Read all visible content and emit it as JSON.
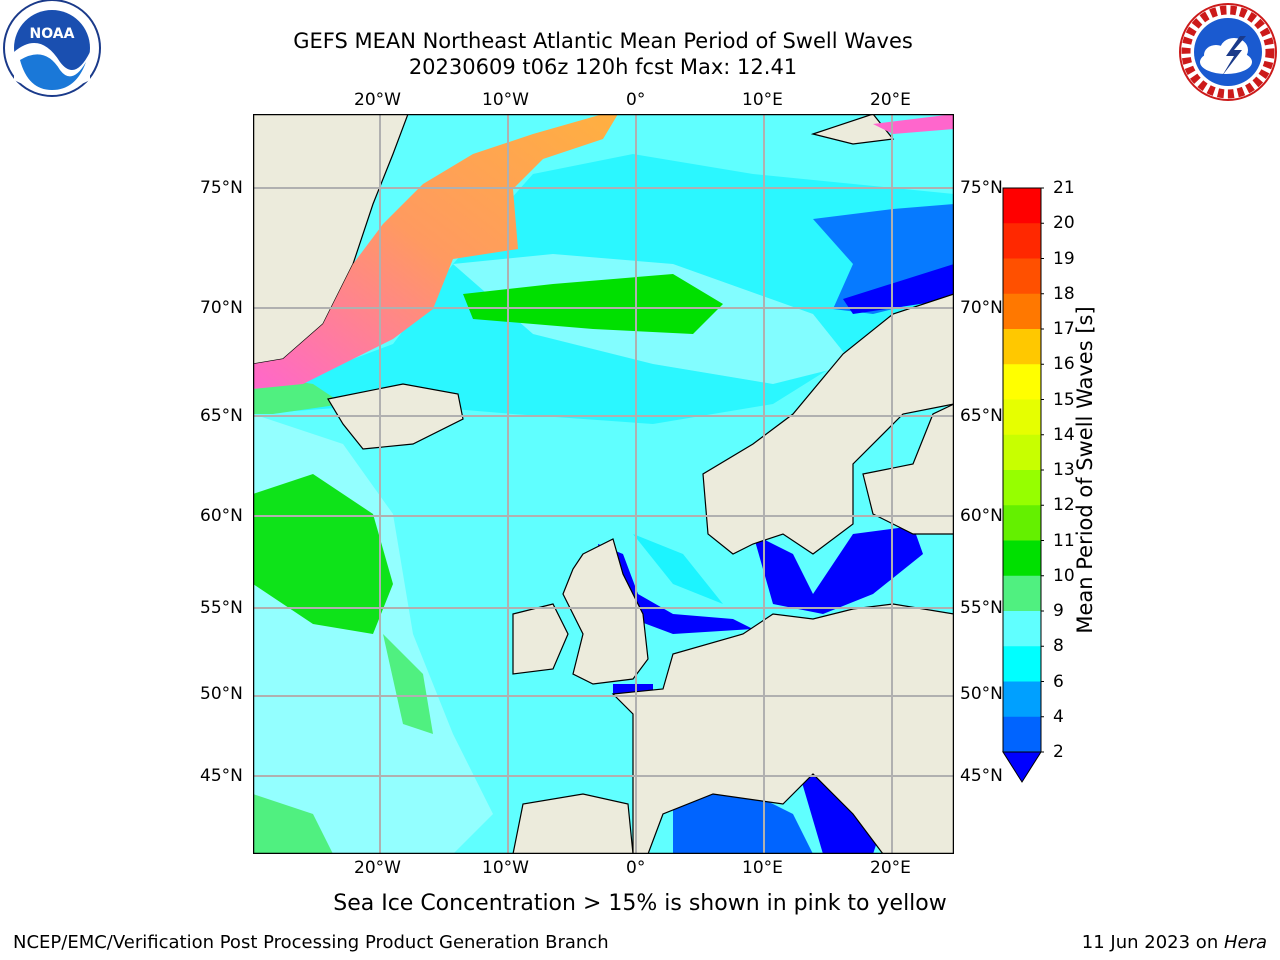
{
  "title": {
    "line1": "GEFS MEAN Northeast Atlantic Mean Period of Swell Waves",
    "line2": "20230609 t06z 120h fcst   Max: 12.41"
  },
  "map": {
    "lon_ticks": [
      "20°W",
      "10°W",
      "0°",
      "10°E",
      "20°E"
    ],
    "lat_ticks": [
      "75°N",
      "70°N",
      "65°N",
      "60°N",
      "55°N",
      "50°N",
      "45°N"
    ],
    "colors": {
      "land": "#ecebdc",
      "ice_pink": "#ff66cc",
      "ice_orange": "#ffb040",
      "grid": "#b0b0b0"
    }
  },
  "colorbar": {
    "label": "Mean Period of Swell Waves [s]",
    "ticks": [
      "21",
      "20",
      "19",
      "18",
      "17",
      "16",
      "15",
      "14",
      "13",
      "12",
      "11",
      "10",
      "9",
      "8",
      "6",
      "4",
      "2"
    ],
    "colors": [
      "#ff0000",
      "#ff2800",
      "#ff5000",
      "#ff7800",
      "#ffa000",
      "#ffc800",
      "#ffff00",
      "#e6ff00",
      "#c8ff00",
      "#96ff00",
      "#64f000",
      "#00e000",
      "#50f080",
      "#a0ffff",
      "#60ffff",
      "#00ffff",
      "#00a0ff",
      "#0064ff",
      "#0000ff"
    ]
  },
  "footer": {
    "caption": "Sea Ice Concentration > 15% is shown in pink to yellow",
    "credit": "NCEP/EMC/Verification Post Processing Product Generation Branch",
    "date_prefix": "11 Jun 2023 on ",
    "date_host": "Hera"
  },
  "logos": {
    "noaa": {
      "name": "noaa-logo",
      "text": "NOAA"
    },
    "nws": {
      "name": "nws-logo",
      "ring_text": "NATIONAL WEATHER SERVICE"
    }
  }
}
